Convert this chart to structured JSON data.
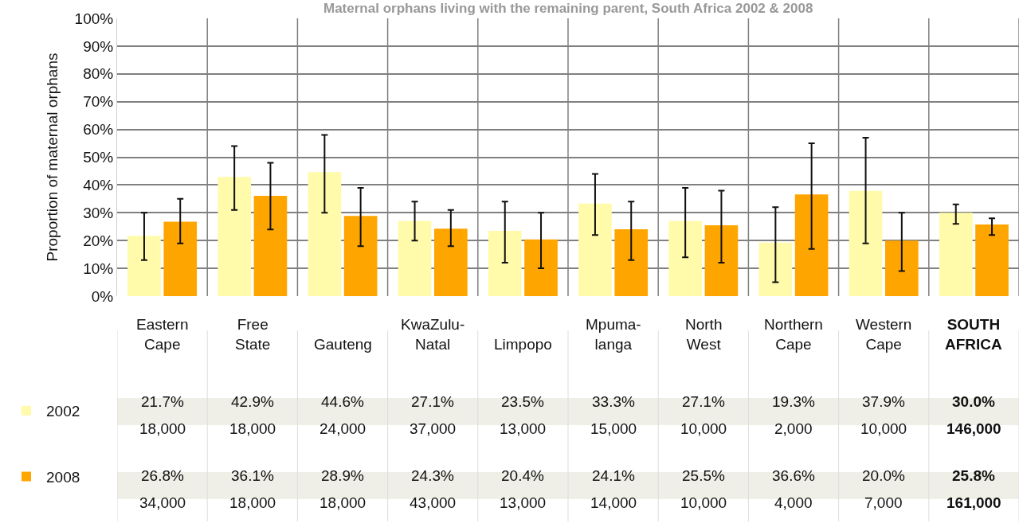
{
  "chart_data": {
    "type": "bar",
    "title": "Maternal orphans living with the remaining parent, South Africa 2002 & 2008",
    "ylabel": "Proportion of maternal orphans",
    "categories": [
      "Eastern\nCape",
      "Free\nState",
      "Gauteng",
      "KwaZulu-\nNatal",
      "Limpopo",
      "Mpuma-\nlanga",
      "North\nWest",
      "Northern\nCape",
      "Western\nCape",
      "SOUTH\nAFRICA"
    ],
    "series": [
      {
        "name": "2002",
        "color": "#fffbaa",
        "values": [
          21.7,
          42.9,
          44.6,
          27.1,
          23.5,
          33.3,
          27.1,
          19.3,
          37.9,
          30.0
        ],
        "value_labels": [
          "21.7%",
          "42.9%",
          "44.6%",
          "27.1%",
          "23.5%",
          "33.3%",
          "27.1%",
          "19.3%",
          "37.9%",
          "30.0%"
        ],
        "errors": [
          [
            13,
            30
          ],
          [
            31,
            54
          ],
          [
            30,
            58
          ],
          [
            20,
            34
          ],
          [
            12,
            34
          ],
          [
            22,
            44
          ],
          [
            14,
            39
          ],
          [
            5,
            32
          ],
          [
            19,
            57
          ],
          [
            26,
            33
          ]
        ]
      },
      {
        "name": "2008",
        "color": "#ffa500",
        "values": [
          26.8,
          36.1,
          28.9,
          24.3,
          20.4,
          24.1,
          25.5,
          36.6,
          20.0,
          25.8
        ],
        "value_labels": [
          "26.8%",
          "36.1%",
          "28.9%",
          "24.3%",
          "20.4%",
          "24.1%",
          "25.5%",
          "36.6%",
          "20.0%",
          "25.8%"
        ],
        "errors": [
          [
            19,
            35
          ],
          [
            24,
            48
          ],
          [
            18,
            39
          ],
          [
            18,
            31
          ],
          [
            10,
            30
          ],
          [
            13,
            34
          ],
          [
            12,
            38
          ],
          [
            17,
            55
          ],
          [
            9,
            30
          ],
          [
            22,
            28
          ]
        ]
      }
    ],
    "annotations": [
      "18,000",
      "18,000",
      "24,000",
      "37,000",
      "13,000",
      "15,000",
      "10,000",
      "2,000",
      "10,000",
      "146,000",
      "34,000",
      "18,000",
      "18,000",
      "43,000",
      "13,000",
      "14,000",
      "10,000",
      "4,000",
      "7,000",
      "161,000"
    ],
    "ylim": [
      0,
      100
    ],
    "yticks": [
      {
        "value": 0,
        "label": "0%"
      },
      {
        "value": 10,
        "label": "10%"
      },
      {
        "value": 20,
        "label": "20%"
      },
      {
        "value": 30,
        "label": "30%"
      },
      {
        "value": 40,
        "label": "40%"
      },
      {
        "value": 50,
        "label": "50%"
      },
      {
        "value": 60,
        "label": "60%"
      },
      {
        "value": 70,
        "label": "70%"
      },
      {
        "value": 80,
        "label": "80%"
      },
      {
        "value": 90,
        "label": "90%"
      },
      {
        "value": 100,
        "label": "100%"
      }
    ],
    "grid": true,
    "legend": "bottom left"
  }
}
